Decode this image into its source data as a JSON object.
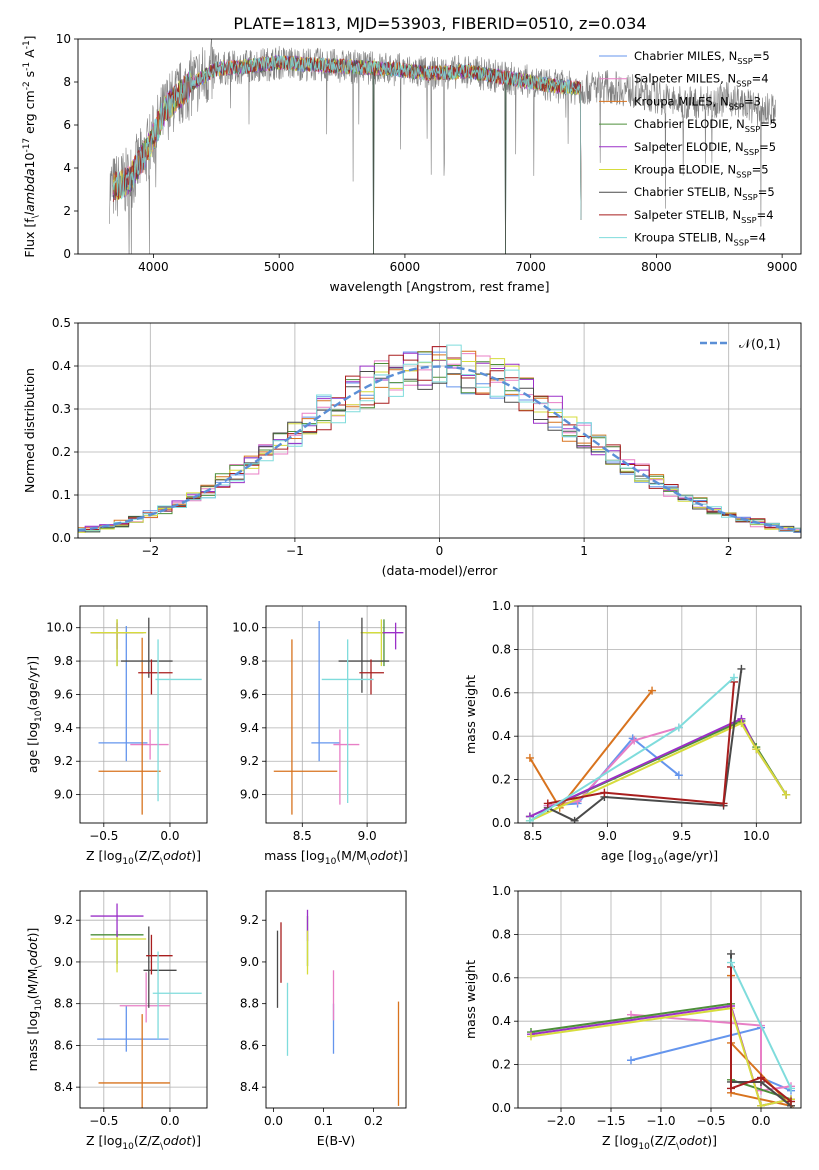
{
  "figure_title": "PLATE=1813, MJD=53903, FIBERID=0510, z=0.034",
  "series": [
    {
      "name": "Chabrier MILES, N$_{SSP}$=5",
      "color": "#6495ed"
    },
    {
      "name": "Salpeter MILES, N$_{SSP}$=4",
      "color": "#e87fc6"
    },
    {
      "name": "Kroupa MILES, N$_{SSP}$=3",
      "color": "#d8731e"
    },
    {
      "name": "Chabrier ELODIE, N$_{SSP}$=5",
      "color": "#4d8f3a"
    },
    {
      "name": "Salpeter ELODIE, N$_{SSP}$=5",
      "color": "#9b30c8"
    },
    {
      "name": "Kroupa ELODIE, N$_{SSP}$=5",
      "color": "#d6dc3c"
    },
    {
      "name": "Chabrier STELIB, N$_{SSP}$=5",
      "color": "#4a4a4a"
    },
    {
      "name": "Salpeter STELIB, N$_{SSP}$=4",
      "color": "#a81e1e"
    },
    {
      "name": "Kroupa STELIB, N$_{SSP}$=4",
      "color": "#7fdcdc"
    }
  ],
  "chart_data": [
    {
      "id": "spectrum",
      "type": "line",
      "xlabel": "wavelength [Angstrom, rest frame]",
      "ylabel": "Flux [f$_\\lambda$10$^{-17}$ erg cm$^{-2}$ s$^{-1}$ A$^{-1}$]",
      "xlim": [
        3400,
        9150
      ],
      "ylim": [
        0,
        10
      ],
      "xticks": [
        4000,
        5000,
        6000,
        7000,
        8000,
        9000
      ],
      "yticks": [
        0,
        2,
        4,
        6,
        8,
        10
      ],
      "data_color": "#808080",
      "model_range": [
        3680,
        7400
      ],
      "data_range": [
        3650,
        8950
      ],
      "continuum": [
        [
          3650,
          3.0
        ],
        [
          3800,
          3.4
        ],
        [
          3950,
          4.8
        ],
        [
          4100,
          6.8
        ],
        [
          4300,
          7.9
        ],
        [
          4500,
          8.6
        ],
        [
          4700,
          8.7
        ],
        [
          5000,
          8.9
        ],
        [
          5300,
          8.8
        ],
        [
          5600,
          8.7
        ],
        [
          5900,
          8.6
        ],
        [
          6200,
          8.4
        ],
        [
          6500,
          8.5
        ],
        [
          6800,
          8.2
        ],
        [
          7000,
          8.0
        ],
        [
          7200,
          7.8
        ],
        [
          7400,
          7.7
        ],
        [
          7600,
          7.8
        ],
        [
          7800,
          7.6
        ],
        [
          8000,
          7.3
        ],
        [
          8200,
          7.0
        ],
        [
          8400,
          7.1
        ],
        [
          8600,
          7.2
        ],
        [
          8800,
          6.7
        ],
        [
          8950,
          6.7
        ]
      ],
      "dips": [
        [
          5750,
          0
        ],
        [
          6800,
          0
        ],
        [
          7400,
          1.6
        ]
      ],
      "grid": false,
      "legend_loc": "upper right"
    },
    {
      "id": "residual_histogram",
      "type": "step",
      "xlabel": "(data-model)/error",
      "ylabel": "Normed distribution",
      "xlim": [
        -2.5,
        2.5
      ],
      "ylim": [
        0,
        0.5
      ],
      "xticks": [
        -2,
        -1,
        0,
        1,
        2
      ],
      "yticks": [
        0,
        0.1,
        0.2,
        0.3,
        0.4,
        0.5
      ],
      "bin_width": 0.1,
      "reference": {
        "name": "$\\mathcal{N}(0,1)$",
        "mean": 0,
        "sigma": 1,
        "style": "dashed",
        "color": "#5b8fd6"
      },
      "grid": true,
      "legend_loc": "upper right"
    },
    {
      "id": "age_vs_Z",
      "type": "errorbar",
      "xlabel": "Z [log$_{10}$(Z/Z$_\\odot$)]",
      "ylabel": "age  [log$_{10}$(age/yr)]",
      "xlim": [
        -0.68,
        0.28
      ],
      "ylim": [
        8.83,
        10.13
      ],
      "xticks": [
        -0.5,
        0.0
      ],
      "yticks": [
        9.0,
        9.2,
        9.4,
        9.6,
        9.8,
        10.0
      ],
      "points": [
        {
          "s": 0,
          "x": -0.33,
          "xe": [
            0.21,
            0.16
          ],
          "y": 9.31,
          "ye": [
            0.11,
            0.7
          ]
        },
        {
          "s": 1,
          "x": -0.15,
          "xe": [
            0.15,
            0.14
          ],
          "y": 9.3,
          "ye": [
            0.09,
            0.09
          ]
        },
        {
          "s": 2,
          "x": -0.21,
          "xe": [
            0.33,
            0.14
          ],
          "y": 9.14,
          "ye": [
            0.26,
            0.8
          ]
        },
        {
          "s": 3,
          "x": -0.4,
          "xe": [
            0.2,
            0.2
          ],
          "y": 9.97,
          "ye": [
            0.2,
            0.08
          ]
        },
        {
          "s": 4,
          "x": -0.4,
          "xe": [
            0.2,
            0.2
          ],
          "y": 9.97,
          "ye": [
            0.1,
            0.06
          ]
        },
        {
          "s": 5,
          "x": -0.4,
          "xe": [
            0.2,
            0.22
          ],
          "y": 9.97,
          "ye": [
            0.2,
            0.08
          ]
        },
        {
          "s": 6,
          "x": -0.16,
          "xe": [
            0.21,
            0.18
          ],
          "y": 9.8,
          "ye": [
            0.1,
            0.26
          ]
        },
        {
          "s": 7,
          "x": -0.14,
          "xe": [
            0.1,
            0.16
          ],
          "y": 9.73,
          "ye": [
            0.13,
            0.08
          ]
        },
        {
          "s": 8,
          "x": -0.09,
          "xe": [
            0.02,
            0.33
          ],
          "y": 9.69,
          "ye": [
            0.73,
            0.24
          ]
        }
      ],
      "grid": true
    },
    {
      "id": "age_vs_mass",
      "type": "errorbar",
      "xlabel": "mass [log$_{10}$(M/M$_\\odot$)]",
      "ylabel": "",
      "xlim": [
        8.22,
        9.3
      ],
      "ylim": [
        8.83,
        10.13
      ],
      "xticks": [
        8.5,
        9.0
      ],
      "yticks": [
        9.0,
        9.2,
        9.4,
        9.6,
        9.8,
        10.0
      ],
      "points": [
        {
          "s": 0,
          "x": 8.63,
          "xe": [
            0.06,
            0.16
          ],
          "y": 9.31,
          "ye": [
            0.11,
            0.73
          ]
        },
        {
          "s": 1,
          "x": 8.79,
          "xe": [
            0.05,
            0.15
          ],
          "y": 9.3,
          "ye": [
            0.36,
            0.09
          ]
        },
        {
          "s": 2,
          "x": 8.42,
          "xe": [
            0.14,
            0.35
          ],
          "y": 9.14,
          "ye": [
            0.26,
            0.79
          ]
        },
        {
          "s": 3,
          "x": 9.13,
          "xe": [
            0.14,
            0.01
          ],
          "y": 9.97,
          "ye": [
            0.2,
            0.08
          ]
        },
        {
          "s": 4,
          "x": 9.22,
          "xe": [
            0.1,
            0.06
          ],
          "y": 9.97,
          "ye": [
            0.1,
            0.06
          ]
        },
        {
          "s": 5,
          "x": 9.11,
          "xe": [
            0.16,
            0.01
          ],
          "y": 9.97,
          "ye": [
            0.2,
            0.08
          ]
        },
        {
          "s": 6,
          "x": 8.96,
          "xe": [
            0.18,
            0.21
          ],
          "y": 9.8,
          "ye": [
            0.19,
            0.26
          ]
        },
        {
          "s": 7,
          "x": 9.03,
          "xe": [
            0.09,
            0.1
          ],
          "y": 9.73,
          "ye": [
            0.13,
            0.08
          ]
        },
        {
          "s": 8,
          "x": 8.85,
          "xe": [
            0.2,
            0.2
          ],
          "y": 9.69,
          "ye": [
            0.74,
            0.24
          ]
        }
      ],
      "grid": true
    },
    {
      "id": "massweight_vs_age",
      "type": "line",
      "xlabel": "age  [log$_{10}$(age/yr)]",
      "ylabel": "mass weight",
      "xlim": [
        8.4,
        10.3
      ],
      "ylim": [
        0,
        1
      ],
      "xticks": [
        8.5,
        9.0,
        9.5,
        10.0
      ],
      "yticks": [
        0,
        0.2,
        0.4,
        0.6,
        0.8,
        1.0
      ],
      "lines": [
        {
          "s": 0,
          "pts": [
            [
              8.6,
              0.08
            ],
            [
              8.8,
              0.09
            ],
            [
              9.17,
              0.39
            ],
            [
              9.48,
              0.22
            ]
          ]
        },
        {
          "s": 1,
          "pts": [
            [
              8.6,
              0.08
            ],
            [
              8.8,
              0.1
            ],
            [
              9.18,
              0.38
            ],
            [
              9.48,
              0.44
            ]
          ]
        },
        {
          "s": 2,
          "pts": [
            [
              8.48,
              0.3
            ],
            [
              8.68,
              0.07
            ],
            [
              9.3,
              0.61
            ]
          ]
        },
        {
          "s": 3,
          "pts": [
            [
              8.48,
              0.03
            ],
            [
              9.9,
              0.47
            ],
            [
              10.0,
              0.35
            ],
            [
              10.2,
              0.13
            ]
          ]
        },
        {
          "s": 4,
          "pts": [
            [
              8.48,
              0.03
            ],
            [
              9.9,
              0.48
            ],
            [
              10.0,
              0.34
            ],
            [
              10.2,
              0.13
            ]
          ]
        },
        {
          "s": 5,
          "pts": [
            [
              8.48,
              0.01
            ],
            [
              9.9,
              0.46
            ],
            [
              10.0,
              0.34
            ],
            [
              10.2,
              0.13
            ]
          ]
        },
        {
          "s": 6,
          "pts": [
            [
              8.6,
              0.07
            ],
            [
              8.78,
              0.01
            ],
            [
              8.98,
              0.12
            ],
            [
              9.78,
              0.08
            ],
            [
              9.9,
              0.71
            ]
          ]
        },
        {
          "s": 7,
          "pts": [
            [
              8.6,
              0.09
            ],
            [
              8.98,
              0.14
            ],
            [
              9.78,
              0.09
            ],
            [
              9.85,
              0.65
            ]
          ]
        },
        {
          "s": 8,
          "pts": [
            [
              8.48,
              0.01
            ],
            [
              9.48,
              0.44
            ],
            [
              9.85,
              0.67
            ]
          ]
        }
      ],
      "grid": true
    },
    {
      "id": "mass_vs_Z",
      "type": "errorbar",
      "xlabel": "Z [log$_{10}$(Z/Z$_\\odot$)]",
      "ylabel": "mass [log$_{10}$(M/M$_\\odot$)]",
      "xlim": [
        -0.68,
        0.28
      ],
      "ylim": [
        8.3,
        9.34
      ],
      "xticks": [
        -0.5,
        0.0
      ],
      "yticks": [
        8.4,
        8.6,
        8.8,
        9.0,
        9.2
      ],
      "points": [
        {
          "s": 0,
          "x": -0.33,
          "xe": [
            0.22,
            0.32
          ],
          "y": 8.63,
          "ye": [
            0.06,
            0.16
          ]
        },
        {
          "s": 1,
          "x": -0.18,
          "xe": [
            0.2,
            0.18
          ],
          "y": 8.79,
          "ye": [
            0.08,
            0.16
          ]
        },
        {
          "s": 2,
          "x": -0.21,
          "xe": [
            0.33,
            0.21
          ],
          "y": 8.42,
          "ye": [
            0.14,
            0.33
          ]
        },
        {
          "s": 3,
          "x": -0.4,
          "xe": [
            0.2,
            0.2
          ],
          "y": 9.13,
          "ye": [
            0.14,
            0.02
          ]
        },
        {
          "s": 4,
          "x": -0.4,
          "xe": [
            0.2,
            0.2
          ],
          "y": 9.22,
          "ye": [
            0.1,
            0.06
          ]
        },
        {
          "s": 5,
          "x": -0.4,
          "xe": [
            0.2,
            0.22
          ],
          "y": 9.11,
          "ye": [
            0.16,
            0.01
          ]
        },
        {
          "s": 6,
          "x": -0.16,
          "xe": [
            0.04,
            0.21
          ],
          "y": 8.96,
          "ye": [
            0.18,
            0.21
          ]
        },
        {
          "s": 7,
          "x": -0.14,
          "xe": [
            0.04,
            0.16
          ],
          "y": 9.03,
          "ye": [
            0.09,
            0.1
          ]
        },
        {
          "s": 8,
          "x": -0.09,
          "xe": [
            0.04,
            0.33
          ],
          "y": 8.85,
          "ye": [
            0.22,
            0.2
          ]
        }
      ],
      "grid": true
    },
    {
      "id": "mass_vs_EBV",
      "type": "errorbar",
      "xlabel": "E(B-V)",
      "ylabel": "",
      "xlim": [
        -0.015,
        0.265
      ],
      "ylim": [
        8.3,
        9.34
      ],
      "xticks": [
        0.0,
        0.1,
        0.2
      ],
      "yticks": [
        8.4,
        8.6,
        8.8,
        9.0,
        9.2
      ],
      "points": [
        {
          "s": 0,
          "x": 0.12,
          "y": 8.64,
          "ye": [
            0.08,
            0.16
          ]
        },
        {
          "s": 1,
          "x": 0.12,
          "y": 8.8,
          "ye": [
            0.08,
            0.16
          ]
        },
        {
          "s": 2,
          "x": 0.25,
          "y": 8.41,
          "ye": [
            0.1,
            0.4
          ]
        },
        {
          "s": 3,
          "x": 0.068,
          "y": 9.12,
          "ye": [
            0.14,
            0.1
          ]
        },
        {
          "s": 4,
          "x": 0.068,
          "y": 9.2,
          "ye": [
            0.1,
            0.05
          ]
        },
        {
          "s": 5,
          "x": 0.068,
          "y": 9.1,
          "ye": [
            0.16,
            0.05
          ]
        },
        {
          "s": 6,
          "x": 0.008,
          "y": 8.97,
          "ye": [
            0.19,
            0.18
          ]
        },
        {
          "s": 7,
          "x": 0.015,
          "y": 9.04,
          "ye": [
            0.14,
            0.15
          ]
        },
        {
          "s": 8,
          "x": 0.028,
          "y": 8.7,
          "ye": [
            0.15,
            0.2
          ]
        }
      ],
      "grid": false
    },
    {
      "id": "massweight_vs_Z",
      "type": "line",
      "xlabel": "Z [log$_{10}$(Z/Z$_\\odot$)]",
      "ylabel": "mass weight",
      "xlim": [
        -2.43,
        0.4
      ],
      "ylim": [
        0,
        1
      ],
      "xticks": [
        -2.0,
        -1.5,
        -1.0,
        -0.5,
        0.0
      ],
      "yticks": [
        0,
        0.2,
        0.4,
        0.6,
        0.8,
        1.0
      ],
      "lines": [
        {
          "s": 0,
          "pts": [
            [
              -1.3,
              0.22
            ],
            [
              0.0,
              0.37
            ],
            [
              0.0,
              0.14
            ],
            [
              0.3,
              0.08
            ]
          ]
        },
        {
          "s": 1,
          "pts": [
            [
              -1.3,
              0.43
            ],
            [
              0.0,
              0.38
            ],
            [
              0.0,
              0.08
            ],
            [
              0.3,
              0.1
            ]
          ]
        },
        {
          "s": 2,
          "pts": [
            [
              -0.3,
              0.61
            ],
            [
              -0.3,
              0.3
            ],
            [
              0.3,
              0.01
            ],
            [
              -0.3,
              0.07
            ]
          ]
        },
        {
          "s": 3,
          "pts": [
            [
              -2.3,
              0.35
            ],
            [
              -0.3,
              0.48
            ],
            [
              -0.3,
              0.13
            ],
            [
              0.3,
              0.04
            ]
          ]
        },
        {
          "s": 4,
          "pts": [
            [
              -2.3,
              0.34
            ],
            [
              -0.3,
              0.47
            ],
            [
              0.0,
              0.01
            ],
            [
              0.3,
              0.04
            ]
          ]
        },
        {
          "s": 5,
          "pts": [
            [
              -2.3,
              0.33
            ],
            [
              -0.3,
              0.46
            ],
            [
              0.0,
              0.01
            ],
            [
              0.3,
              0.04
            ]
          ]
        },
        {
          "s": 6,
          "pts": [
            [
              -0.3,
              0.71
            ],
            [
              -0.3,
              0.12
            ],
            [
              0.0,
              0.12
            ],
            [
              0.3,
              0.01
            ]
          ]
        },
        {
          "s": 7,
          "pts": [
            [
              -0.3,
              0.65
            ],
            [
              -0.3,
              0.09
            ],
            [
              0.0,
              0.14
            ],
            [
              0.3,
              0.03
            ]
          ]
        },
        {
          "s": 8,
          "pts": [
            [
              -0.3,
              0.67
            ],
            [
              0.3,
              0.09
            ]
          ]
        }
      ],
      "grid": true
    }
  ]
}
